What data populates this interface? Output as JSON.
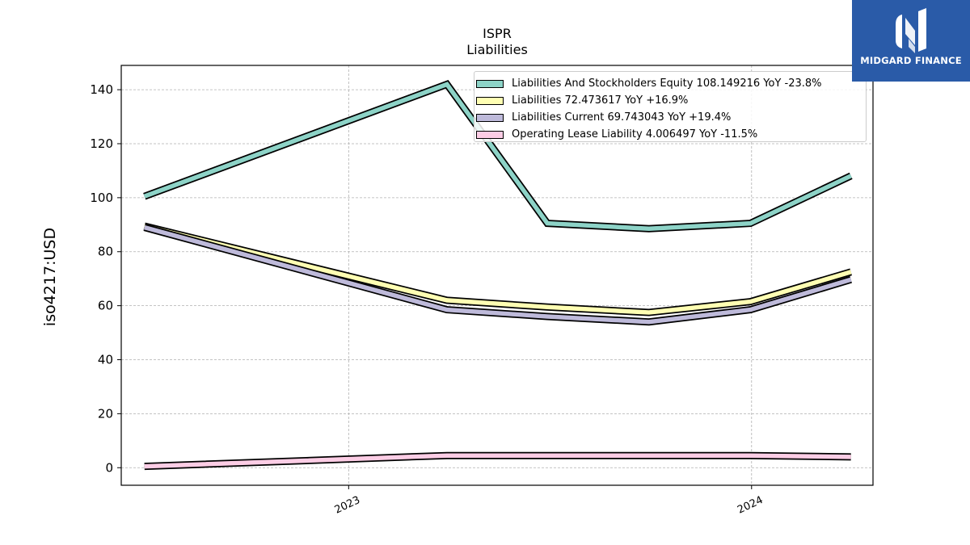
{
  "chart_data": {
    "type": "line",
    "title": "ISPR",
    "subtitle": "Liabilities",
    "ylabel": "iso4217:USD",
    "xlabel": "",
    "ylim": [
      -6.5,
      149
    ],
    "yticks": [
      0,
      20,
      40,
      60,
      80,
      100,
      120,
      140
    ],
    "xlim": [
      "2022-06-09",
      "2024-04-20"
    ],
    "xticks": [
      {
        "date": "2023-01-01",
        "label": "2023"
      },
      {
        "date": "2024-01-01",
        "label": "2024"
      }
    ],
    "grid": true,
    "legend_position": "top-right",
    "x": [
      "2022-06-30",
      "2023-03-31",
      "2023-06-30",
      "2023-09-30",
      "2023-12-31",
      "2024-03-31"
    ],
    "series": [
      {
        "name": "Liabilities And Stockholders Equity",
        "color": "#8dd3c7",
        "legend": "Liabilities And Stockholders Equity  108.149216 YoY -23.8%",
        "values": [
          100.5,
          142.0,
          90.5,
          88.5,
          90.5,
          108.1
        ]
      },
      {
        "name": "Liabilities",
        "color": "#ffffb3",
        "legend": "Liabilities  72.473617 YoY +16.9%",
        "values": [
          89.5,
          62.0,
          59.5,
          57.5,
          61.5,
          72.5
        ]
      },
      {
        "name": "Liabilities Current",
        "color": "#bebada",
        "legend": "Liabilities Current  69.743043 YoY +19.4%",
        "values": [
          89.0,
          58.5,
          56.0,
          54.0,
          58.5,
          69.7
        ]
      },
      {
        "name": "Operating Lease Liability",
        "color": "#fccde5",
        "legend": "Operating Lease Liability  4.006497 YoY -11.5%",
        "values": [
          0.5,
          4.5,
          4.5,
          4.5,
          4.5,
          4.0
        ]
      }
    ]
  },
  "logo": {
    "text": "MIDGARD FINANCE"
  }
}
